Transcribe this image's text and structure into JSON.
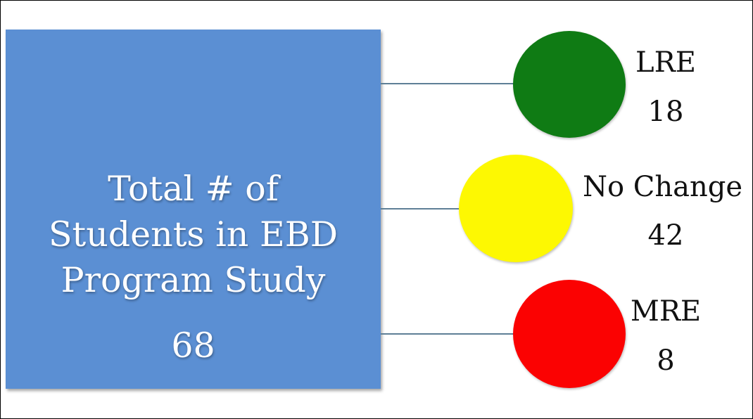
{
  "total": {
    "label": "Total # of\nStudents in EBD\nProgram Study",
    "value": "68",
    "color": "#5b8fd3"
  },
  "categories": [
    {
      "label": "LRE",
      "value": "18",
      "color": "#0f7b14"
    },
    {
      "label": "No Change",
      "value": "42",
      "color": "#fdf802"
    },
    {
      "label": "MRE",
      "value": "8",
      "color": "#fb0202"
    }
  ]
}
